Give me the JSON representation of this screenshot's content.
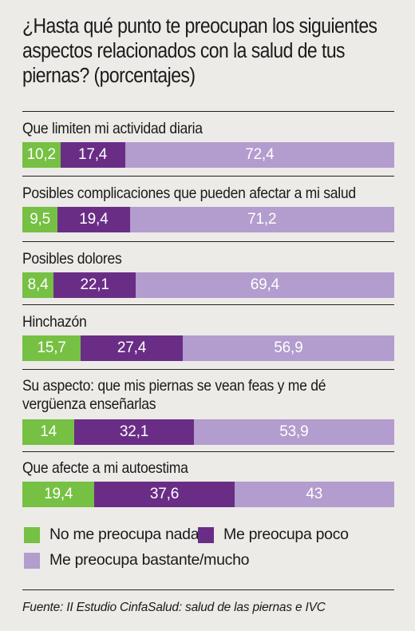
{
  "colors": {
    "none": "#76c043",
    "little": "#6a2d86",
    "much": "#b39cce",
    "background": "#ecebe7"
  },
  "chart_data": {
    "type": "bar",
    "orientation": "horizontal",
    "stacked": true,
    "title": "¿Hasta qué punto te preocupan los siguientes aspectos relacionados con la salud de tus piernas? (porcentajes)",
    "title_lines": [
      "¿Hasta qué punto te preocupan los siguientes",
      "aspectos relacionados con la salud de tus",
      "piernas? (porcentajes)"
    ],
    "categories": [
      "Que limiten mi actividad diaria",
      "Posibles complicaciones que pueden afectar a mi salud",
      "Posibles dolores",
      "Hinchazón",
      "Su aspecto: que mis piernas se vean feas y me dé vergüenza enseñarlas",
      "Que afecte a mi autoestima"
    ],
    "category_lines": [
      [
        "Que limiten mi actividad diaria"
      ],
      [
        "Posibles complicaciones que pueden afectar a mi salud"
      ],
      [
        "Posibles dolores"
      ],
      [
        "Hinchazón"
      ],
      [
        "Su aspecto: que mis piernas se vean feas y me dé",
        "vergüenza enseñarlas"
      ],
      [
        "Que afecte a mi autoestima"
      ]
    ],
    "series": [
      {
        "name": "No me preocupa nada",
        "values": [
          10.2,
          9.5,
          8.4,
          15.7,
          14,
          19.4
        ],
        "labels": [
          "10,2",
          "9,5",
          "8,4",
          "15,7",
          "14",
          "19,4"
        ]
      },
      {
        "name": "Me preocupa poco",
        "values": [
          17.4,
          19.4,
          22.1,
          27.4,
          32.1,
          37.6
        ],
        "labels": [
          "17,4",
          "19,4",
          "22,1",
          "27,4",
          "32,1",
          "37,6"
        ]
      },
      {
        "name": "Me preocupa bastante/mucho",
        "values": [
          72.4,
          71.2,
          69.4,
          56.9,
          53.9,
          43
        ],
        "labels": [
          "72,4",
          "71,2",
          "69,4",
          "56,9",
          "53,9",
          "43"
        ]
      }
    ],
    "xlim": [
      0,
      100
    ],
    "legend_position": "bottom",
    "source": "Fuente: II Estudio CinfaSalud: salud de las piernas e IVC"
  }
}
